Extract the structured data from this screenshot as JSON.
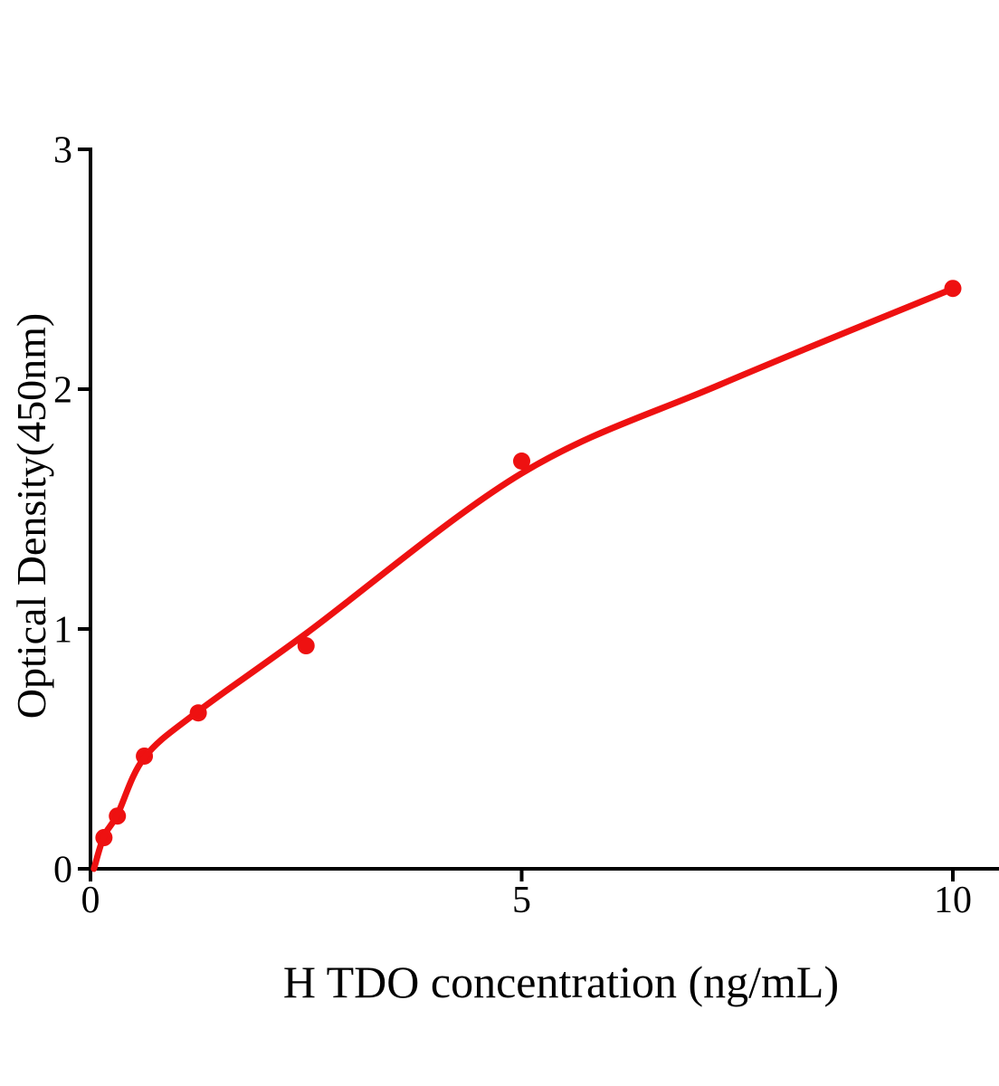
{
  "figure": {
    "background": "#ffffff",
    "axis_color": "#000000"
  },
  "chart_data": {
    "type": "scatter",
    "title": "",
    "xlabel": "H TDO concentration (ng/mL)",
    "ylabel": "Optical Density(450nm)",
    "xlim": [
      0,
      10.55
    ],
    "ylim": [
      0,
      3
    ],
    "grid": false,
    "legend": "none",
    "x_ticks": [
      0,
      5,
      10
    ],
    "x_tick_labels": [
      "0",
      "5",
      "10"
    ],
    "y_ticks": [
      0,
      1,
      2,
      3
    ],
    "y_tick_labels": [
      "0",
      "1",
      "2",
      "3"
    ],
    "series": [
      {
        "name": "standard-points",
        "type": "scatter",
        "color": "#ee1111",
        "x": [
          0.156,
          0.312,
          0.625,
          1.25,
          2.5,
          5,
          10
        ],
        "y": [
          0.13,
          0.22,
          0.47,
          0.65,
          0.93,
          1.7,
          2.42
        ]
      },
      {
        "name": "fit-curve",
        "type": "line",
        "color": "#ee1111",
        "x": [
          0.04,
          0.156,
          0.312,
          0.625,
          1.25,
          2.5,
          5.0,
          7.3,
          10.0
        ],
        "y": [
          0.0,
          0.136,
          0.226,
          0.464,
          0.657,
          0.981,
          1.649,
          2.019,
          2.419
        ]
      }
    ]
  }
}
